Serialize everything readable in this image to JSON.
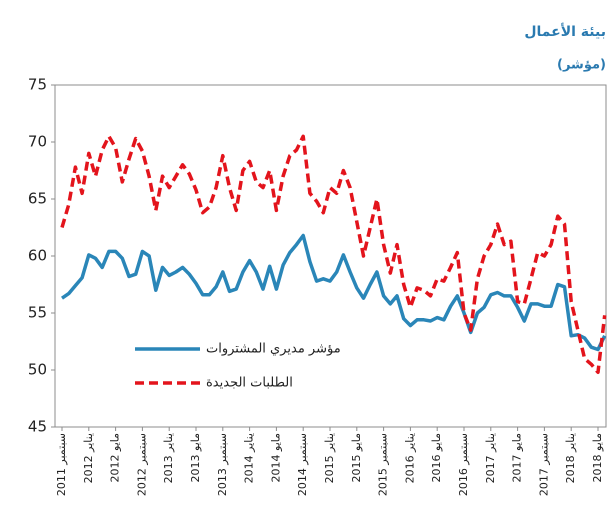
{
  "chart_data": {
    "type": "line",
    "title": "بيئة الأعمال",
    "subtitle": "(مؤشر)",
    "categories": [
      "سبتمبر 2011",
      null,
      null,
      null,
      "يناير 2012",
      null,
      null,
      null,
      "مايو 2012",
      null,
      null,
      null,
      "سبتمبر 2012",
      null,
      null,
      null,
      "يناير 2013",
      null,
      null,
      null,
      "مايو 2013",
      null,
      null,
      null,
      "سبتمبر 2013",
      null,
      null,
      null,
      "يناير 2014",
      null,
      null,
      null,
      "مايو 2014",
      null,
      null,
      null,
      "سبتمبر 2014",
      null,
      null,
      null,
      "يناير 2015",
      null,
      null,
      null,
      "مايو 2015",
      null,
      null,
      null,
      "سبتمبر 2015",
      null,
      null,
      null,
      "يناير 2016",
      null,
      null,
      null,
      "مايو 2016",
      null,
      null,
      null,
      "سبتمبر 2016",
      null,
      null,
      null,
      "يناير 2017",
      null,
      null,
      null,
      "مايو 2017",
      null,
      null,
      null,
      "سبتمبر 2017",
      null,
      null,
      null,
      "يناير 2018",
      null,
      null,
      null,
      "مايو 2018",
      null
    ],
    "series": [
      {
        "name": "مؤشر مديري المشتروات",
        "color": "#2a86b8",
        "dashed": false,
        "values": [
          56.3,
          56.7,
          57.4,
          58.1,
          60.1,
          59.8,
          59.0,
          60.4,
          60.4,
          59.8,
          58.2,
          58.4,
          60.4,
          60.0,
          57.0,
          59.0,
          58.3,
          58.6,
          59.0,
          58.4,
          57.6,
          56.6,
          56.6,
          57.3,
          58.6,
          56.9,
          57.1,
          58.6,
          59.6,
          58.6,
          57.1,
          59.1,
          57.1,
          59.2,
          60.3,
          61.0,
          61.8,
          59.5,
          57.8,
          58.0,
          57.8,
          58.6,
          60.1,
          58.6,
          57.2,
          56.3,
          57.5,
          58.6,
          56.5,
          55.8,
          56.5,
          54.5,
          53.9,
          54.4,
          54.4,
          54.3,
          54.6,
          54.4,
          55.6,
          56.5,
          55.0,
          53.3,
          55.0,
          55.5,
          56.6,
          56.8,
          56.5,
          56.5,
          55.5,
          54.3,
          55.8,
          55.8,
          55.6,
          55.6,
          57.5,
          57.3,
          53.0,
          53.1,
          52.8,
          52.0,
          51.8,
          53.0
        ]
      },
      {
        "name": "الطلبات الجديدة",
        "color": "#e3141c",
        "dashed": true,
        "values": [
          62.5,
          64.5,
          67.8,
          65.5,
          69.0,
          67.0,
          69.3,
          70.5,
          69.5,
          66.5,
          68.5,
          70.3,
          69.2,
          67.0,
          64.0,
          67.0,
          66.0,
          67.0,
          68.0,
          67.2,
          65.8,
          63.8,
          64.3,
          66.0,
          68.8,
          66.0,
          64.0,
          67.5,
          68.3,
          66.5,
          66.0,
          67.5,
          64.0,
          67.0,
          68.8,
          69.3,
          70.5,
          65.5,
          64.8,
          63.8,
          66.0,
          65.5,
          67.5,
          66.0,
          63.0,
          60.0,
          62.5,
          65.0,
          61.0,
          58.5,
          61.0,
          57.5,
          55.5,
          57.2,
          57.0,
          56.5,
          58.0,
          57.8,
          59.0,
          60.3,
          55.0,
          53.5,
          58.0,
          60.0,
          61.0,
          62.8,
          61.0,
          61.3,
          56.0,
          55.8,
          58.0,
          60.3,
          60.0,
          61.0,
          63.5,
          62.8,
          56.0,
          53.5,
          51.0,
          50.5,
          49.8,
          54.8
        ]
      }
    ],
    "ylim": [
      45,
      75
    ],
    "yticks": [
      45,
      50,
      55,
      60,
      65,
      70,
      75
    ],
    "grid": false,
    "legend": "lower left"
  }
}
